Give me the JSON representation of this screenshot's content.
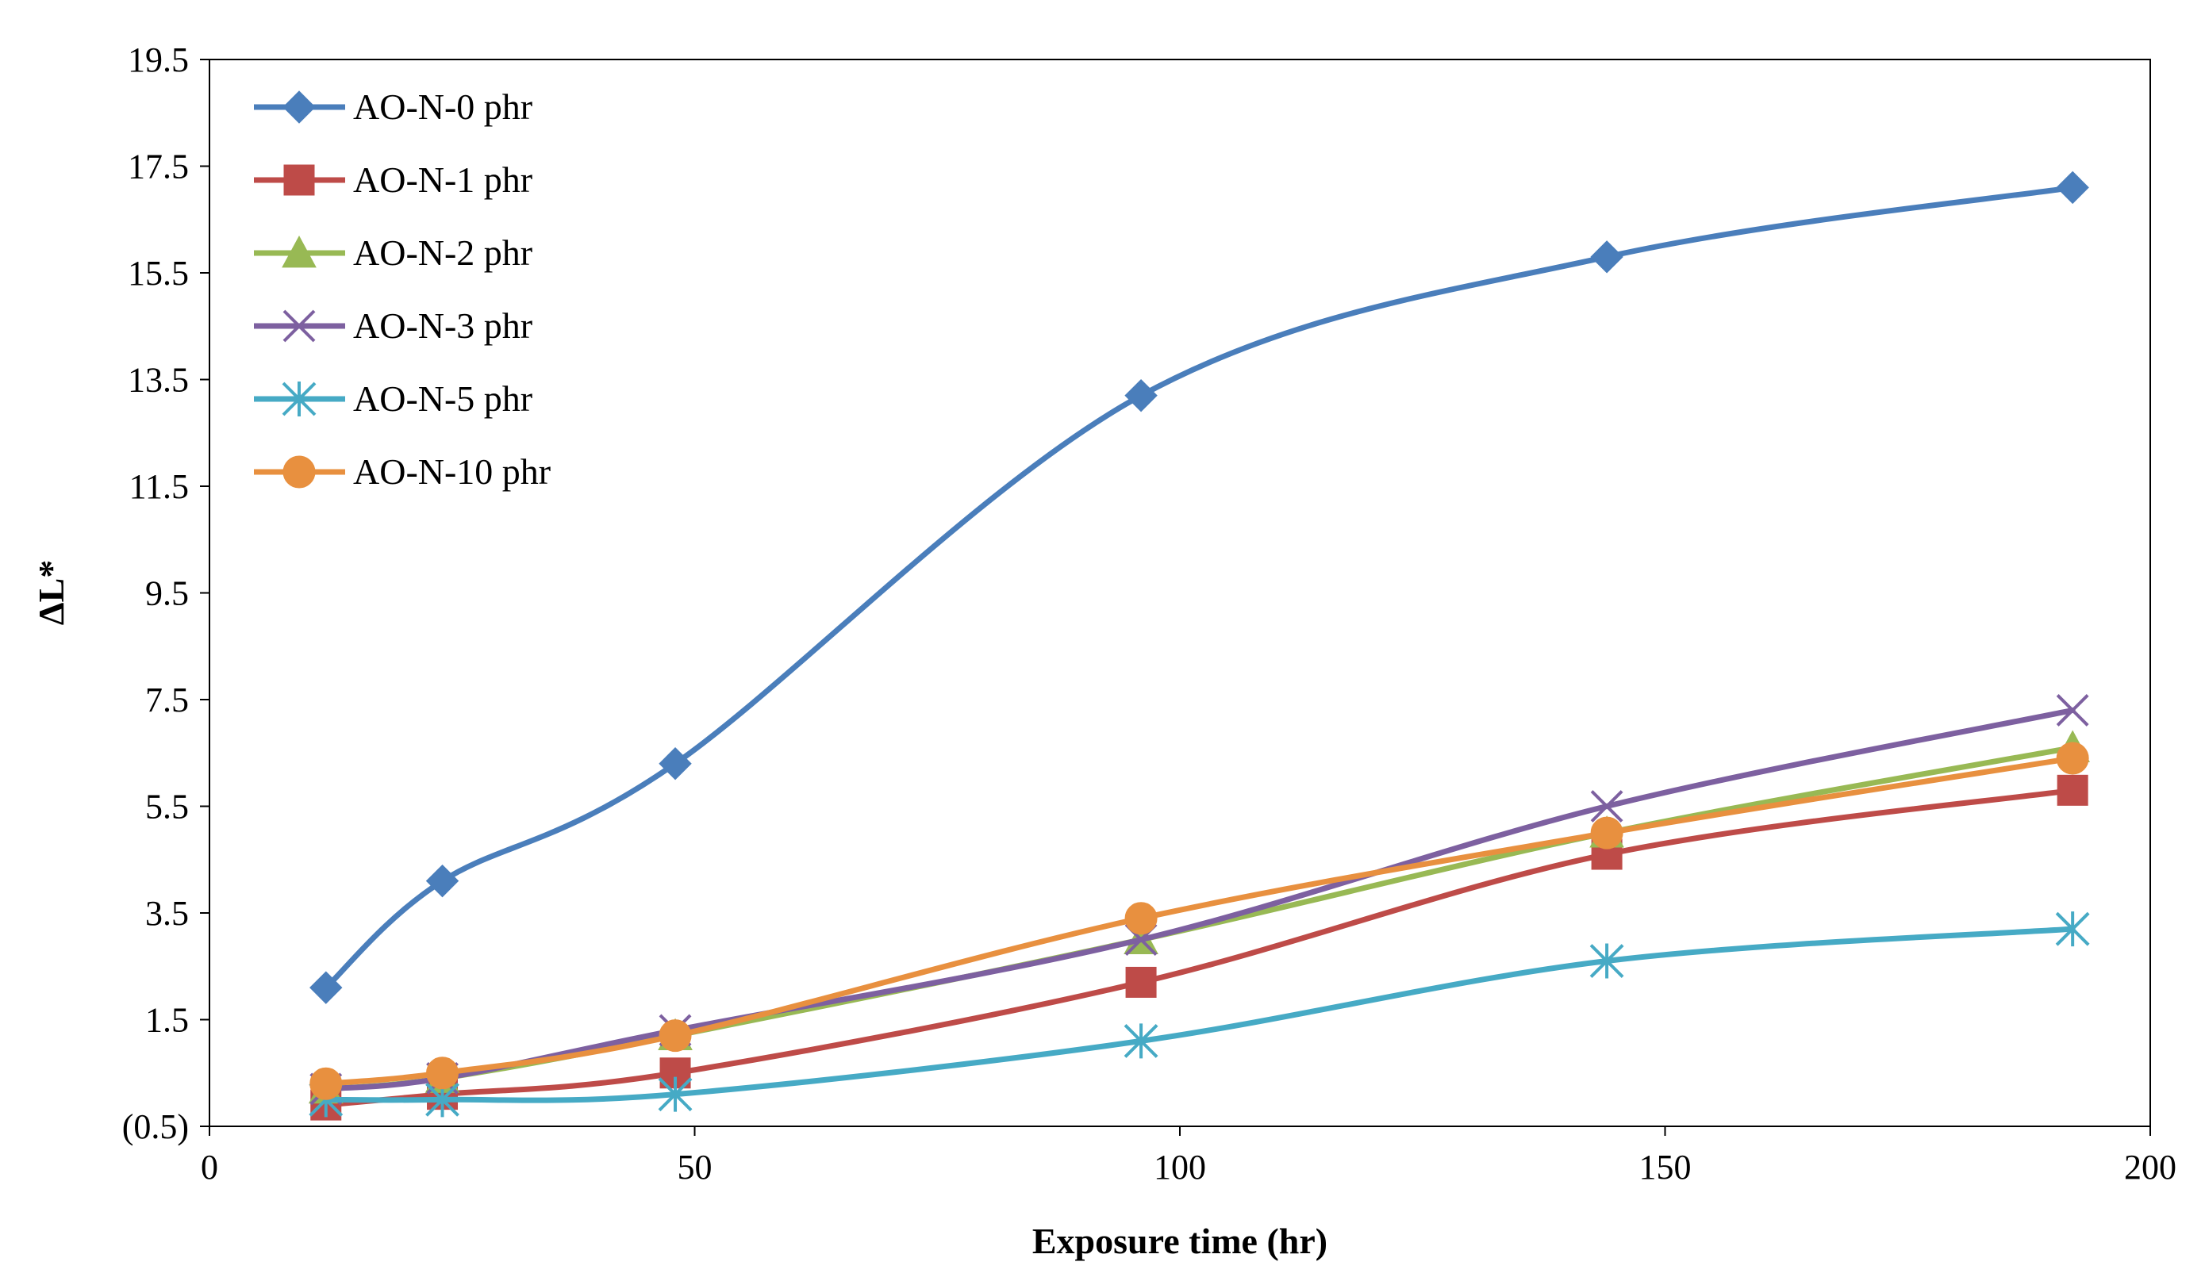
{
  "chart_data": {
    "type": "line",
    "title": "",
    "xlabel": "Exposure time (hr)",
    "ylabel": "ΔL*",
    "xlim": [
      0,
      200
    ],
    "ylim": [
      -0.5,
      19.5
    ],
    "xticks": [
      0,
      50,
      100,
      150,
      200
    ],
    "xtick_labels": [
      "0",
      "50",
      "100",
      "150",
      "200"
    ],
    "yticks": [
      -0.5,
      1.5,
      3.5,
      5.5,
      7.5,
      9.5,
      11.5,
      13.5,
      15.5,
      17.5,
      19.5
    ],
    "ytick_labels": [
      "(0.5)",
      "1.5",
      "3.5",
      "5.5",
      "7.5",
      "9.5",
      "11.5",
      "13.5",
      "15.5",
      "17.5",
      "19.5"
    ],
    "negative_label_color": "#FF0000",
    "grid": false,
    "smooth": true,
    "legend_position": "top-left",
    "x": [
      12,
      24,
      48,
      96,
      144,
      192
    ],
    "series": [
      {
        "name": "AO-N-0 phr",
        "color": "#4A7EBB",
        "marker": "diamond",
        "values": [
          2.1,
          4.1,
          6.3,
          13.2,
          15.8,
          17.1
        ]
      },
      {
        "name": "AO-N-1 phr",
        "color": "#BE4B48",
        "marker": "square",
        "values": [
          -0.1,
          0.1,
          0.5,
          2.2,
          4.6,
          5.8
        ]
      },
      {
        "name": "AO-N-2 phr",
        "color": "#98B954",
        "marker": "triangle",
        "values": [
          0.2,
          0.4,
          1.2,
          3.0,
          5.0,
          6.6
        ]
      },
      {
        "name": "AO-N-3 phr",
        "color": "#7D60A0",
        "marker": "x",
        "values": [
          0.2,
          0.4,
          1.3,
          3.0,
          5.5,
          7.3
        ]
      },
      {
        "name": "AO-N-5 phr",
        "color": "#46AAC5",
        "marker": "asterisk",
        "values": [
          0.0,
          0.0,
          0.1,
          1.1,
          2.6,
          3.2
        ]
      },
      {
        "name": "AO-N-10 phr",
        "color": "#E8903F",
        "marker": "circle",
        "values": [
          0.3,
          0.5,
          1.2,
          3.4,
          5.0,
          6.4
        ]
      }
    ]
  }
}
